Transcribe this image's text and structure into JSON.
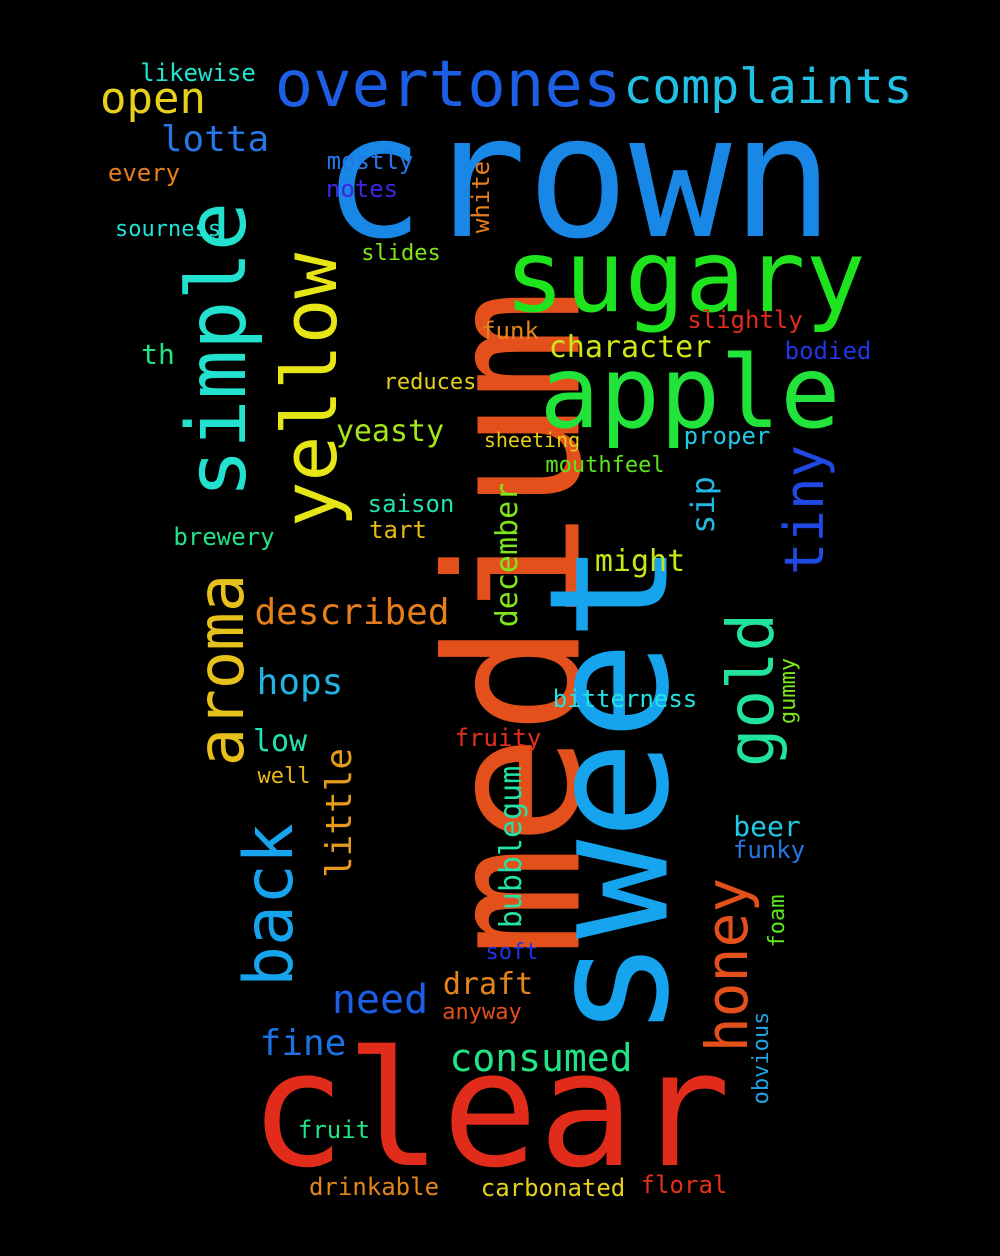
{
  "words": [
    {
      "text": "crown",
      "color": "#1887e6",
      "vertical": false
    },
    {
      "text": "medium",
      "color": "#e4501b",
      "vertical": true
    },
    {
      "text": "sweet",
      "color": "#17a4ee",
      "vertical": true
    },
    {
      "text": "clear",
      "color": "#e22c1b",
      "vertical": false
    },
    {
      "text": "sugary",
      "color": "#1de41d",
      "vertical": false
    },
    {
      "text": "apple",
      "color": "#22e33a",
      "vertical": false
    },
    {
      "text": "simple",
      "color": "#22e2cf",
      "vertical": true
    },
    {
      "text": "yellow",
      "color": "#e6e617",
      "vertical": true
    },
    {
      "text": "overtones",
      "color": "#1c5fe5",
      "vertical": false
    },
    {
      "text": "aroma",
      "color": "#e6c11b",
      "vertical": true
    },
    {
      "text": "gold",
      "color": "#22e39b",
      "vertical": true
    },
    {
      "text": "back",
      "color": "#17a4ee",
      "vertical": true
    },
    {
      "text": "complaints",
      "color": "#22c0e3",
      "vertical": false
    },
    {
      "text": "honey",
      "color": "#e4501b",
      "vertical": true
    },
    {
      "text": "tiny",
      "color": "#2049e4",
      "vertical": true
    },
    {
      "text": "open",
      "color": "#e6d01b",
      "vertical": false
    },
    {
      "text": "described",
      "color": "#e67e1b",
      "vertical": false
    },
    {
      "text": "need",
      "color": "#1c5fe5",
      "vertical": false
    },
    {
      "text": "consumed",
      "color": "#22e385",
      "vertical": false
    },
    {
      "text": "lotta",
      "color": "#2776e6",
      "vertical": false
    },
    {
      "text": "hops",
      "color": "#22b3e3",
      "vertical": false
    },
    {
      "text": "little",
      "color": "#e69a1b",
      "vertical": true
    },
    {
      "text": "fine",
      "color": "#1c72e5",
      "vertical": false
    },
    {
      "text": "bubblegum",
      "color": "#22e3a6",
      "vertical": true
    },
    {
      "text": "december",
      "color": "#7ee61b",
      "vertical": true
    },
    {
      "text": "character",
      "color": "#d0e617",
      "vertical": false
    },
    {
      "text": "yeasty",
      "color": "#a6e617",
      "vertical": false
    },
    {
      "text": "draft",
      "color": "#e6851b",
      "vertical": false
    },
    {
      "text": "might",
      "color": "#c8e617",
      "vertical": false
    },
    {
      "text": "sip",
      "color": "#22b8e3",
      "vertical": true
    },
    {
      "text": "low",
      "color": "#22e3b0",
      "vertical": false
    },
    {
      "text": "beer",
      "color": "#22c9e3",
      "vertical": false
    },
    {
      "text": "white",
      "color": "#e67e1b",
      "vertical": true
    },
    {
      "text": "mostly",
      "color": "#2776e6",
      "vertical": false
    },
    {
      "text": "notes",
      "color": "#3b27e6",
      "vertical": false
    },
    {
      "text": "slightly",
      "color": "#e22c1b",
      "vertical": false
    },
    {
      "text": "bodied",
      "color": "#2035e4",
      "vertical": false
    },
    {
      "text": "likewise",
      "color": "#22e3d0",
      "vertical": false
    },
    {
      "text": "every",
      "color": "#e67e1b",
      "vertical": false
    },
    {
      "text": "sourness",
      "color": "#22e3d6",
      "vertical": false
    },
    {
      "text": "slides",
      "color": "#7ee61b",
      "vertical": false
    },
    {
      "text": "funk",
      "color": "#e6851b",
      "vertical": false
    },
    {
      "text": "th",
      "color": "#22e385",
      "vertical": false
    },
    {
      "text": "reduces",
      "color": "#e6d01b",
      "vertical": false
    },
    {
      "text": "sheeting",
      "color": "#e6d017",
      "vertical": false
    },
    {
      "text": "proper",
      "color": "#22c9e3",
      "vertical": false
    },
    {
      "text": "mouthfeel",
      "color": "#5de61b",
      "vertical": false
    },
    {
      "text": "saison",
      "color": "#22e3b0",
      "vertical": false
    },
    {
      "text": "tart",
      "color": "#e6b81b",
      "vertical": false
    },
    {
      "text": "brewery",
      "color": "#22e385",
      "vertical": false
    },
    {
      "text": "bitterness",
      "color": "#22e3e3",
      "vertical": false
    },
    {
      "text": "gummy",
      "color": "#7ee61b",
      "vertical": true
    },
    {
      "text": "fruity",
      "color": "#e4301b",
      "vertical": false
    },
    {
      "text": "well",
      "color": "#e6b81b",
      "vertical": false
    },
    {
      "text": "funky",
      "color": "#2776e6",
      "vertical": false
    },
    {
      "text": "foam",
      "color": "#5de61b",
      "vertical": true
    },
    {
      "text": "soft",
      "color": "#2035e4",
      "vertical": false
    },
    {
      "text": "anyway",
      "color": "#e4501b",
      "vertical": false
    },
    {
      "text": "obvious",
      "color": "#22a4e3",
      "vertical": true
    },
    {
      "text": "fruit",
      "color": "#22e385",
      "vertical": false
    },
    {
      "text": "drinkable",
      "color": "#e6851b",
      "vertical": false
    },
    {
      "text": "carbonated",
      "color": "#e6d01b",
      "vertical": false
    },
    {
      "text": "floral",
      "color": "#e4301b",
      "vertical": false
    }
  ]
}
